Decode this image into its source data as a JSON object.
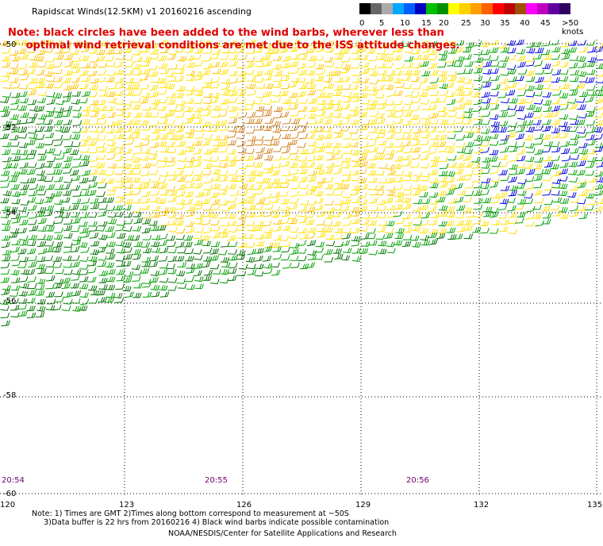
{
  "title": "Rapidscat Winds(12.5KM) v1 20160216 ascending",
  "note": "Note: black circles have been added to the wind barbs, wherever less than\n     optimal wind retrieval conditions are met due to the ISS attitude changes.",
  "legend": {
    "colors": [
      "#000000",
      "#666666",
      "#aaaaaa",
      "#00a8ff",
      "#0060ff",
      "#0000c0",
      "#00c000",
      "#009000",
      "#ffff00",
      "#ffd000",
      "#ffa000",
      "#ff6000",
      "#ff0000",
      "#c00000",
      "#a05000",
      "#ff00ff",
      "#c000c0",
      "#6000a0",
      "#300060"
    ],
    "labels": [
      "0",
      "5",
      "10",
      "15",
      "20",
      "25",
      "30",
      "35",
      "40",
      "45",
      ">50 knots"
    ]
  },
  "axes": {
    "lon_ticks": [
      "120",
      "123",
      "126",
      "129",
      "132",
      "135"
    ],
    "lat_ticks": [
      "-50",
      "-52",
      "-54",
      "-56",
      "-58",
      "-60"
    ],
    "time_labels": [
      "20:54",
      "20:55",
      "20:56"
    ]
  },
  "footnote": "Note: 1) Times are GMT 2)Times along bottom correspond to measurement at ~50S\n     3)Data buffer is 22 hrs from 20160216 4) Black wind barbs indicate possible contamination",
  "credit": "NOAA/NESDIS/Center for Satellite Applications and Research",
  "colors": {
    "green": "#00a000",
    "dark_green": "#007000",
    "yellow": "#ffe000",
    "gold": "#ffc000",
    "orange": "#d08020",
    "blue": "#0000e0",
    "red": "#e00000",
    "grid": "#000000"
  }
}
